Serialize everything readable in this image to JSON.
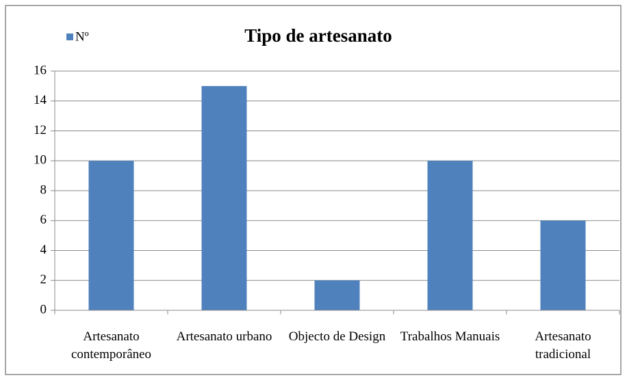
{
  "chart_data": {
    "type": "bar",
    "title": "Tipo de artesanato",
    "categories": [
      "Artesanato contemporâneo",
      "Artesanato urbano",
      "Objecto de Design",
      "Trabalhos Manuais",
      "Artesanato tradicional"
    ],
    "series": [
      {
        "name": "Nº",
        "color": "#4f81bd",
        "values": [
          10,
          15,
          2,
          10,
          6
        ]
      }
    ],
    "ylim": [
      0,
      16
    ],
    "yticks": [
      0,
      2,
      4,
      6,
      8,
      10,
      12,
      14,
      16
    ],
    "grid": true,
    "legend": "top-left"
  }
}
